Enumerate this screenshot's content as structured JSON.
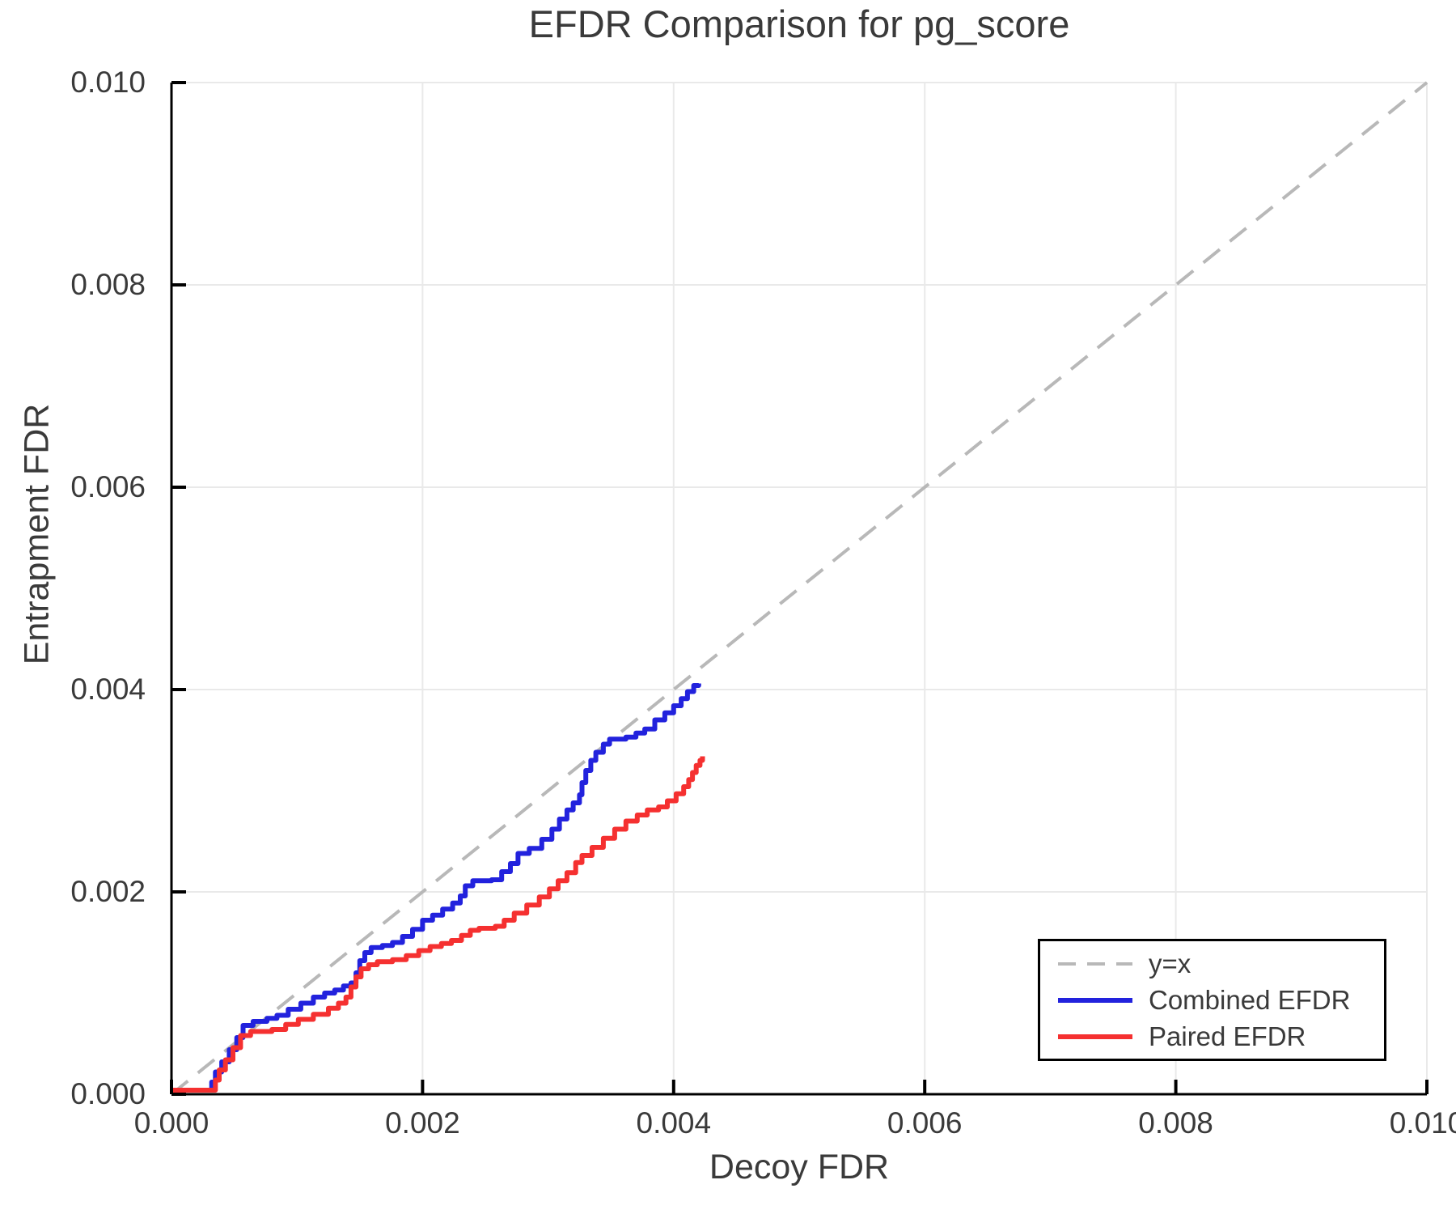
{
  "chart_data": {
    "type": "line",
    "title": "EFDR Comparison for pg_score",
    "xlabel": "Decoy FDR",
    "ylabel": "Entrapment FDR",
    "xlim": [
      0.0,
      0.01
    ],
    "ylim": [
      0.0,
      0.01
    ],
    "x_ticks": [
      0.0,
      0.002,
      0.004,
      0.006,
      0.008,
      0.01
    ],
    "x_tick_labels": [
      "0.000",
      "0.002",
      "0.004",
      "0.006",
      "0.008",
      "0.010"
    ],
    "y_ticks": [
      0.0,
      0.002,
      0.004,
      0.006,
      0.008,
      0.01
    ],
    "y_tick_labels": [
      "0.000",
      "0.002",
      "0.004",
      "0.006",
      "0.008",
      "0.010"
    ],
    "grid": true,
    "legend_position": "bottom-right",
    "style": {
      "background": "#ffffff",
      "grid_color": "#e9e9e9",
      "axis_color": "#000000",
      "text_color": "#3a3a3a"
    },
    "series": [
      {
        "label": "y=x",
        "type": "identity-dashed",
        "color": "#b8b8b8",
        "points": [
          [
            0.0,
            0.0
          ],
          [
            0.01,
            0.01
          ]
        ]
      },
      {
        "label": "Combined EFDR",
        "type": "step",
        "color": "#2222dd",
        "points": [
          [
            0.0,
            4e-05
          ],
          [
            0.0003,
            4e-05
          ],
          [
            0.00032,
            0.00012
          ],
          [
            0.00035,
            0.00022
          ],
          [
            0.0004,
            0.00032
          ],
          [
            0.00046,
            0.00044
          ],
          [
            0.00052,
            0.00056
          ],
          [
            0.00057,
            0.00068
          ],
          [
            0.00065,
            0.00072
          ],
          [
            0.00076,
            0.00075
          ],
          [
            0.00084,
            0.00078
          ],
          [
            0.00093,
            0.00084
          ],
          [
            0.00103,
            0.0009
          ],
          [
            0.00113,
            0.00096
          ],
          [
            0.00122,
            0.001
          ],
          [
            0.0013,
            0.00103
          ],
          [
            0.00137,
            0.00107
          ],
          [
            0.00143,
            0.0011
          ],
          [
            0.00147,
            0.0012
          ],
          [
            0.0015,
            0.00132
          ],
          [
            0.00154,
            0.0014
          ],
          [
            0.00159,
            0.00145
          ],
          [
            0.00168,
            0.00147
          ],
          [
            0.00176,
            0.0015
          ],
          [
            0.00184,
            0.00156
          ],
          [
            0.00192,
            0.00163
          ],
          [
            0.002,
            0.00172
          ],
          [
            0.00208,
            0.00177
          ],
          [
            0.00216,
            0.00183
          ],
          [
            0.00224,
            0.00189
          ],
          [
            0.0023,
            0.00196
          ],
          [
            0.00234,
            0.00206
          ],
          [
            0.0024,
            0.00211
          ],
          [
            0.00255,
            0.00212
          ],
          [
            0.00263,
            0.0022
          ],
          [
            0.0027,
            0.00228
          ],
          [
            0.00276,
            0.00238
          ],
          [
            0.00285,
            0.00243
          ],
          [
            0.00295,
            0.00252
          ],
          [
            0.00303,
            0.00262
          ],
          [
            0.00309,
            0.00272
          ],
          [
            0.00315,
            0.00281
          ],
          [
            0.0032,
            0.00288
          ],
          [
            0.00325,
            0.00296
          ],
          [
            0.00327,
            0.00308
          ],
          [
            0.0033,
            0.0032
          ],
          [
            0.00334,
            0.0033
          ],
          [
            0.00338,
            0.00338
          ],
          [
            0.00344,
            0.00346
          ],
          [
            0.00349,
            0.00351
          ],
          [
            0.00362,
            0.00353
          ],
          [
            0.0037,
            0.00357
          ],
          [
            0.00377,
            0.00361
          ],
          [
            0.00385,
            0.0037
          ],
          [
            0.00393,
            0.00377
          ],
          [
            0.004,
            0.00384
          ],
          [
            0.00406,
            0.00391
          ],
          [
            0.00411,
            0.00398
          ],
          [
            0.00416,
            0.00404
          ],
          [
            0.0042,
            0.00406
          ]
        ]
      },
      {
        "label": "Paired EFDR",
        "type": "step",
        "color": "#f53030",
        "points": [
          [
            0.0,
            4e-05
          ],
          [
            0.00032,
            4e-05
          ],
          [
            0.00035,
            0.00014
          ],
          [
            0.00038,
            0.00024
          ],
          [
            0.00043,
            0.00034
          ],
          [
            0.00049,
            0.00046
          ],
          [
            0.00055,
            0.00058
          ],
          [
            0.00063,
            0.00062
          ],
          [
            0.0008,
            0.00064
          ],
          [
            0.00091,
            0.00069
          ],
          [
            0.00101,
            0.00074
          ],
          [
            0.00113,
            0.00079
          ],
          [
            0.00125,
            0.00085
          ],
          [
            0.00133,
            0.0009
          ],
          [
            0.00139,
            0.00096
          ],
          [
            0.00143,
            0.00106
          ],
          [
            0.00147,
            0.00116
          ],
          [
            0.00151,
            0.00124
          ],
          [
            0.00157,
            0.00128
          ],
          [
            0.00164,
            0.00131
          ],
          [
            0.00176,
            0.00133
          ],
          [
            0.00187,
            0.00137
          ],
          [
            0.00197,
            0.00142
          ],
          [
            0.00206,
            0.00146
          ],
          [
            0.00215,
            0.00149
          ],
          [
            0.00223,
            0.00152
          ],
          [
            0.00231,
            0.00157
          ],
          [
            0.00238,
            0.00162
          ],
          [
            0.00245,
            0.00164
          ],
          [
            0.00258,
            0.00166
          ],
          [
            0.00265,
            0.00172
          ],
          [
            0.00273,
            0.00179
          ],
          [
            0.00283,
            0.00187
          ],
          [
            0.00293,
            0.00195
          ],
          [
            0.00301,
            0.00203
          ],
          [
            0.00308,
            0.00211
          ],
          [
            0.00315,
            0.00219
          ],
          [
            0.00322,
            0.00229
          ],
          [
            0.00327,
            0.00236
          ],
          [
            0.00335,
            0.00244
          ],
          [
            0.00344,
            0.00253
          ],
          [
            0.00353,
            0.00262
          ],
          [
            0.00362,
            0.0027
          ],
          [
            0.00371,
            0.00276
          ],
          [
            0.00379,
            0.00281
          ],
          [
            0.00388,
            0.00284
          ],
          [
            0.00395,
            0.0029
          ],
          [
            0.00402,
            0.00297
          ],
          [
            0.00408,
            0.00304
          ],
          [
            0.00412,
            0.00311
          ],
          [
            0.00415,
            0.00318
          ],
          [
            0.00418,
            0.00325
          ],
          [
            0.00421,
            0.0033
          ],
          [
            0.00423,
            0.00334
          ]
        ]
      }
    ]
  }
}
